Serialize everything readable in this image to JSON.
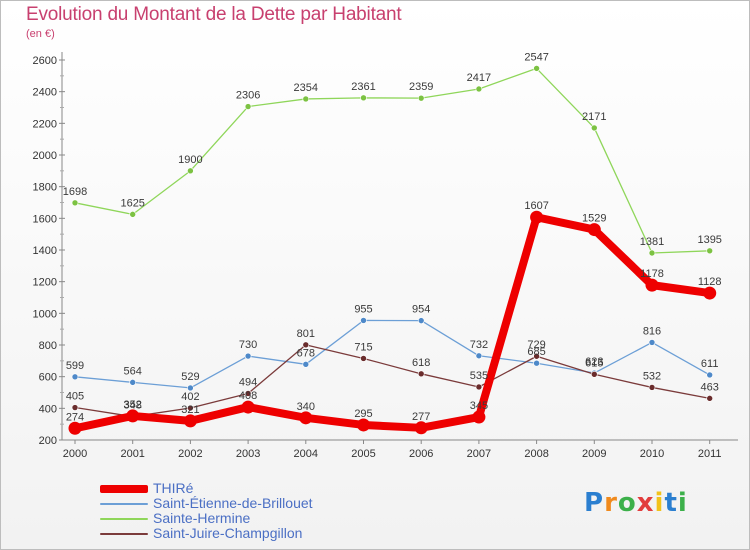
{
  "header": {
    "title": "Evolution du Montant de la Dette par Habitant",
    "unit": "(en €)"
  },
  "logo": {
    "text": "Proxiti"
  },
  "chart_data": {
    "type": "line",
    "title": "Evolution du Montant de la Dette par Habitant",
    "subtitle": "(en €)",
    "x": [
      "2000",
      "2001",
      "2002",
      "2003",
      "2004",
      "2005",
      "2006",
      "2007",
      "2008",
      "2009",
      "2010",
      "2011"
    ],
    "ylim": [
      200,
      2600
    ],
    "yticks": [
      200,
      400,
      600,
      800,
      1000,
      1200,
      1400,
      1600,
      1800,
      2000,
      2200,
      2400,
      2600
    ],
    "grid": false,
    "legend_position": "bottom-left",
    "series": [
      {
        "name": "Sainte-Hermine",
        "color": "#8fd65a",
        "markerColor": "#7cc242",
        "width": 1.3,
        "values": [
          1698,
          1625,
          1900,
          2306,
          2354,
          2361,
          2359,
          2417,
          2547,
          2171,
          1381,
          1395
        ]
      },
      {
        "name": "Saint-Étienne-de-Brillouet",
        "color": "#6c9fd6",
        "markerColor": "#4e89c9",
        "width": 1.3,
        "values": [
          599,
          564,
          529,
          730,
          678,
          955,
          954,
          732,
          685,
          623,
          816,
          611
        ]
      },
      {
        "name": "Saint-Juire-Champgillon",
        "color": "#7b3b3b",
        "markerColor": "#6a2c2c",
        "width": 1.3,
        "values": [
          405,
          348,
          402,
          494,
          801,
          715,
          618,
          535,
          729,
          615,
          532,
          463
        ]
      },
      {
        "name": "THIRé",
        "color": "#ee0000",
        "markerColor": "#ee0000",
        "width": 8,
        "values": [
          274,
          352,
          321,
          408,
          340,
          295,
          277,
          345,
          1607,
          1529,
          1178,
          1128
        ]
      }
    ],
    "legend_order": [
      "THIRé",
      "Saint-Étienne-de-Brillouet",
      "Sainte-Hermine",
      "Saint-Juire-Champgillon"
    ]
  }
}
